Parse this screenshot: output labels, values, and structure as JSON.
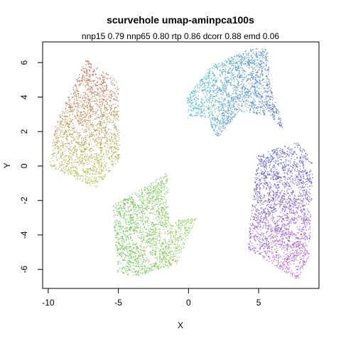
{
  "chart_data": {
    "type": "scatter",
    "title": "scurvehole umap-aminpca100s",
    "subtitle": "nnp15 0.79 nnp65 0.80 rtp 0.86 dcorr 0.88 emd 0.06",
    "xlabel": "X",
    "ylabel": "Y",
    "xlim": [
      -10.4,
      9.3
    ],
    "ylim": [
      -7.1,
      7.2
    ],
    "xticks": [
      -10,
      -5,
      0,
      5
    ],
    "yticks": [
      -6,
      -4,
      -2,
      0,
      2,
      4,
      6
    ],
    "grid": false,
    "legend": "none",
    "clusters": [
      {
        "polygon": [
          [
            -7.3,
            6.2
          ],
          [
            -5.0,
            4.9
          ],
          [
            -4.9,
            0.4
          ],
          [
            -6.6,
            -1.3
          ],
          [
            -9.9,
            0.0
          ],
          [
            -9.5,
            2.4
          ]
        ],
        "color_from": "#c0504a",
        "color_to": "#a8c840",
        "density": 1900
      },
      {
        "polygon": [
          [
            -5.4,
            -2.3
          ],
          [
            -1.5,
            -0.4
          ],
          [
            -1.4,
            -3.2
          ],
          [
            0.6,
            -3.0
          ],
          [
            -0.9,
            -5.8
          ],
          [
            -3.8,
            -6.4
          ],
          [
            -5.1,
            -6.2
          ]
        ],
        "color_from": "#5cbf48",
        "color_to": "#8cc84a",
        "density": 1800
      },
      {
        "polygon": [
          [
            -0.1,
            4.0
          ],
          [
            1.6,
            5.8
          ],
          [
            4.4,
            6.8
          ],
          [
            5.6,
            6.8
          ],
          [
            5.9,
            4.5
          ],
          [
            6.9,
            2.0
          ],
          [
            5.8,
            2.9
          ],
          [
            3.6,
            3.2
          ],
          [
            2.1,
            1.6
          ],
          [
            1.3,
            2.8
          ],
          [
            -0.1,
            2.8
          ]
        ],
        "color_from": "#4ac0c0",
        "color_to": "#4a60c8",
        "density": 1800
      },
      {
        "polygon": [
          [
            6.2,
            1.0
          ],
          [
            7.9,
            1.4
          ],
          [
            8.9,
            0.1
          ],
          [
            8.6,
            -5.3
          ],
          [
            7.8,
            -6.6
          ],
          [
            4.2,
            -4.8
          ],
          [
            4.9,
            0.6
          ]
        ],
        "color_from": "#4a58cc",
        "color_to": "#c04ec8",
        "density": 2200
      }
    ]
  }
}
